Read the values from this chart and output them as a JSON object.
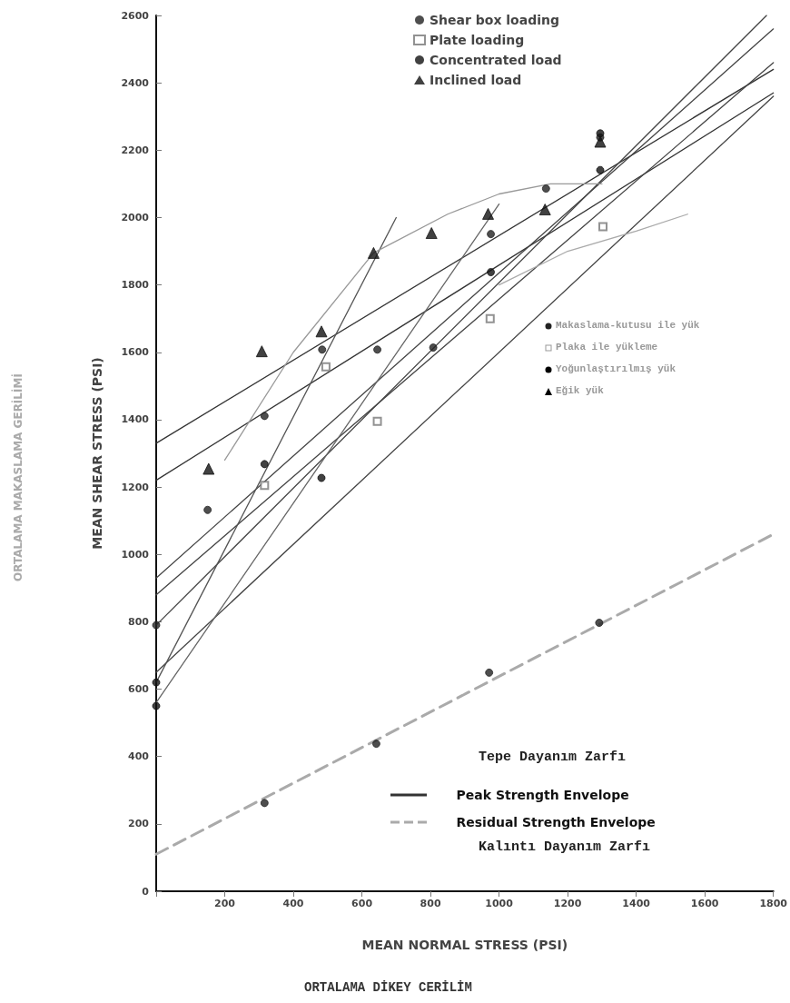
{
  "chart_data": {
    "type": "scatter",
    "xlabel": "MEAN NORMAL STRESS (PSI)",
    "ylabel": "MEAN SHEAR STRESS (PSI)",
    "annotations": [
      "ORTALAMA MAKASLAMA GERİLİMİ",
      "ORTALAMA DİKEY CERİLİM",
      "Tepe Dayanım Zarfı",
      "Kalıntı Dayanım Zarfı",
      "Makaslama-kutusu ile yük",
      "Plaka ile yükleme",
      "Yoğunlaştırılmış yük",
      "Eğik yük"
    ],
    "xlim": [
      0,
      1800
    ],
    "xticks": [
      {
        "value": 0,
        "label": null
      },
      200,
      400,
      600,
      800,
      1000,
      1200,
      1400,
      1600,
      1800
    ],
    "ylim": [
      0,
      2600
    ],
    "yticks": [
      0,
      200,
      400,
      600,
      800,
      1000,
      1200,
      1400,
      1600,
      1800,
      2000,
      2200,
      2400,
      2600
    ],
    "grid": false,
    "legend": "top",
    "series": [
      {
        "type": "line",
        "name": "Peak Strength Envelope",
        "color": "#333333",
        "marker": "none",
        "line_style": "solid",
        "x": [
          0,
          1800
        ],
        "values": [
          1330,
          2440
        ]
      },
      {
        "type": "line",
        "color": "#333333",
        "marker": "none",
        "line_style": "solid",
        "x": [
          0,
          1800
        ],
        "values": [
          1220,
          2370
        ]
      },
      {
        "type": "line",
        "color": "#444444",
        "marker": "none",
        "line_style": "solid",
        "x": [
          0,
          1800
        ],
        "values": [
          930,
          2560
        ]
      },
      {
        "type": "line",
        "color": "#444444",
        "marker": "none",
        "line_style": "solid",
        "x": [
          0,
          1800
        ],
        "values": [
          880,
          2460
        ]
      },
      {
        "type": "line",
        "color": "#444444",
        "marker": "none",
        "line_style": "solid",
        "x": [
          0,
          1780
        ],
        "values": [
          790,
          2600
        ]
      },
      {
        "type": "line",
        "color": "#444444",
        "marker": "none",
        "line_style": "solid",
        "x": [
          0,
          1800
        ],
        "values": [
          650,
          2360
        ]
      },
      {
        "type": "line",
        "color": "#555555",
        "marker": "none",
        "line_style": "solid",
        "x": [
          0,
          700
        ],
        "values": [
          620,
          2000
        ]
      },
      {
        "type": "line",
        "color": "#666666",
        "marker": "none",
        "line_style": "solid",
        "x": [
          0,
          1000
        ],
        "values": [
          560,
          2040
        ]
      },
      {
        "type": "line",
        "color": "#999999",
        "marker": "none",
        "line_style": "solid",
        "x": [
          200,
          400,
          634,
          850,
          1000,
          1150,
          1300
        ],
        "values": [
          1280,
          1600,
          1895,
          2010,
          2070,
          2100,
          2100
        ]
      },
      {
        "type": "line",
        "color": "#aaaaaa",
        "marker": "none",
        "line_style": "solid",
        "x": [
          1000,
          1200,
          1400,
          1550
        ],
        "values": [
          1800,
          1900,
          1960,
          2010
        ]
      },
      {
        "type": "line",
        "name": "Residual Strength Envelope",
        "color": "#aaaaaa",
        "marker": "none",
        "line_style": "dashed",
        "x": [
          0,
          1800
        ],
        "values": [
          110,
          1060
        ]
      },
      {
        "color": "#222222",
        "marker": "circle",
        "x": [
          316,
          642,
          971,
          1292
        ],
        "values": [
          262,
          438,
          649,
          797
        ]
      },
      {
        "name": "Shear box loading",
        "color": "#222222",
        "marker": "circle",
        "x": [
          0,
          150,
          316,
          484,
          645,
          808,
          976,
          1137,
          1295
        ],
        "values": [
          790,
          1132,
          1411,
          1608,
          1608,
          1614,
          1951,
          2086,
          2238
        ]
      },
      {
        "name": "Plate loading",
        "color": "#777777",
        "marker": "square",
        "x": [
          316,
          495,
          645,
          974,
          1303
        ],
        "values": [
          1205,
          1557,
          1395,
          1700,
          1973
        ]
      },
      {
        "name": "Concentrated load",
        "color": "#111111",
        "marker": "circle",
        "x": [
          0,
          0,
          316,
          482,
          976,
          1295,
          1295
        ],
        "values": [
          620,
          550,
          1268,
          1227,
          1838,
          2141,
          2250
        ]
      },
      {
        "name": "Inclined load",
        "color": "#111111",
        "marker": "triangle",
        "x": [
          153,
          308,
          482,
          634,
          803,
          968,
          1134,
          1295
        ],
        "values": [
          1254,
          1603,
          1662,
          1895,
          1954,
          2011,
          2024,
          2225
        ]
      }
    ]
  }
}
